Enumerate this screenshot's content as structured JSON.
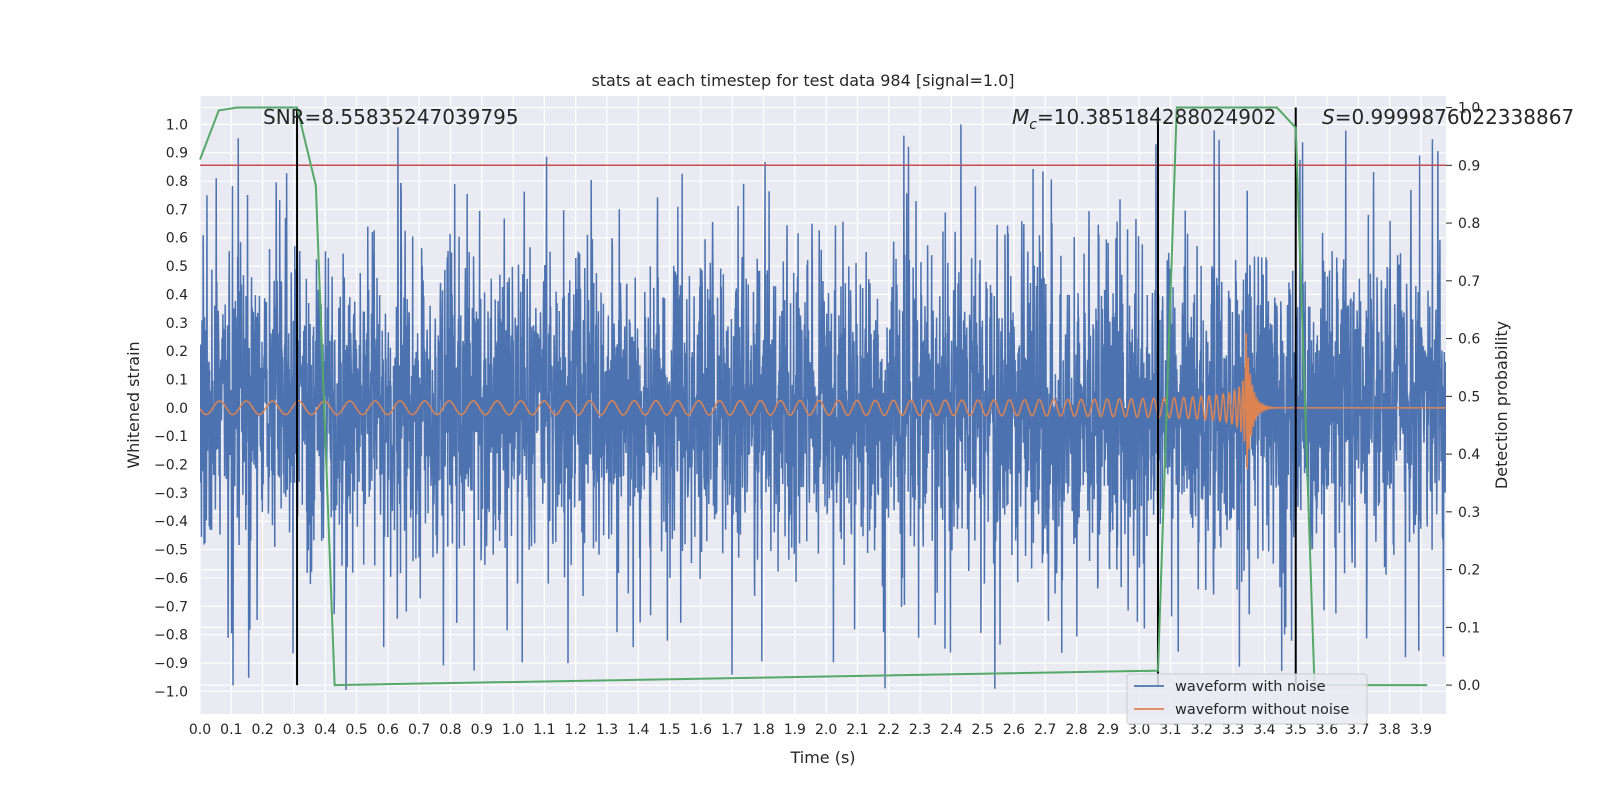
{
  "chart_data": {
    "type": "line",
    "title": "stats at each timestep for test data 984 [signal=1.0]",
    "xlabel": "Time (s)",
    "ylabel": "Whitened strain",
    "ylabel_right": "Detection probability",
    "xlim": [
      0.0,
      3.98
    ],
    "ylim": [
      -1.08,
      1.1
    ],
    "ylim_right": [
      -0.05,
      1.02
    ],
    "x_ticks": [
      "0.0",
      "0.1",
      "0.2",
      "0.3",
      "0.4",
      "0.5",
      "0.6",
      "0.7",
      "0.8",
      "0.9",
      "1.0",
      "1.1",
      "1.2",
      "1.3",
      "1.4",
      "1.5",
      "1.6",
      "1.7",
      "1.8",
      "1.9",
      "2.0",
      "2.1",
      "2.2",
      "2.3",
      "2.4",
      "2.5",
      "2.6",
      "2.7",
      "2.8",
      "2.9",
      "3.0",
      "3.1",
      "3.2",
      "3.3",
      "3.4",
      "3.5",
      "3.6",
      "3.7",
      "3.8",
      "3.9"
    ],
    "y_ticks": [
      "1.0",
      "0.9",
      "0.8",
      "0.7",
      "0.6",
      "0.5",
      "0.4",
      "0.3",
      "0.2",
      "0.1",
      "0.0",
      "−0.1",
      "−0.2",
      "−0.3",
      "−0.4",
      "−0.5",
      "−0.6",
      "−0.7",
      "−0.8",
      "−0.9",
      "−1.0"
    ],
    "y_ticks_right": [
      "1.0",
      "0.9",
      "0.8",
      "0.7",
      "0.6",
      "0.5",
      "0.4",
      "0.3",
      "0.2",
      "0.1",
      "0.0"
    ],
    "grid": true,
    "legend_position": "lower-right",
    "background_color": "#eaeaf2",
    "annotations": {
      "snr": "SNR=8.55835247039795",
      "mc_symbol": "M",
      "mc_sub": "c",
      "mc_value": "=10.385184288024902",
      "s_symbol": "S",
      "s_value": "=0.9999876022338867"
    },
    "threshold_right": 0.9,
    "threshold_color": "#c44e52",
    "vertical_lines_x": [
      0.31,
      3.06,
      3.5
    ],
    "series": [
      {
        "name": "waveform with noise",
        "axis": "left",
        "color": "#4c72b0",
        "description_seed": 984,
        "amplitude_range": [
          -1.0,
          1.0
        ]
      },
      {
        "name": "waveform without noise",
        "axis": "left",
        "color": "#dd8452",
        "merger_time": 3.34,
        "peak_amplitude": 0.38
      },
      {
        "axis": "right",
        "color": "#55a868",
        "x": [
          0.0,
          0.06,
          0.12,
          0.31,
          0.37,
          0.43,
          3.06,
          3.12,
          3.44,
          3.5,
          3.56,
          3.92
        ],
        "y": [
          0.91,
          0.995,
          1.0,
          1.0,
          0.865,
          0.0,
          0.025,
          1.0,
          1.0,
          0.965,
          0.0,
          0.0
        ]
      }
    ]
  }
}
